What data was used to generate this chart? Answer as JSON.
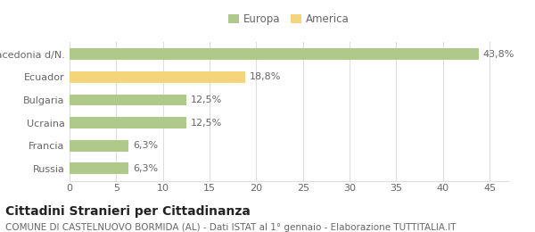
{
  "categories": [
    "Russia",
    "Francia",
    "Ucraina",
    "Bulgaria",
    "Ecuador",
    "Macedonia d/N."
  ],
  "values": [
    6.3,
    6.3,
    12.5,
    12.5,
    18.8,
    43.8
  ],
  "labels": [
    "6,3%",
    "6,3%",
    "12,5%",
    "12,5%",
    "18,8%",
    "43,8%"
  ],
  "colors": [
    "#aec98a",
    "#aec98a",
    "#aec98a",
    "#aec98a",
    "#f5d57a",
    "#aec98a"
  ],
  "bar_height": 0.5,
  "xlim": [
    0,
    47
  ],
  "xticks": [
    0,
    5,
    10,
    15,
    20,
    25,
    30,
    35,
    40,
    45
  ],
  "legend_items": [
    {
      "label": "Europa",
      "color": "#aec98a"
    },
    {
      "label": "America",
      "color": "#f5d57a"
    }
  ],
  "title": "Cittadini Stranieri per Cittadinanza",
  "subtitle": "COMUNE DI CASTELNUOVO BORMIDA (AL) - Dati ISTAT al 1° gennaio - Elaborazione TUTTITALIA.IT",
  "title_fontsize": 10,
  "subtitle_fontsize": 7.5,
  "label_fontsize": 8,
  "tick_fontsize": 8,
  "legend_fontsize": 8.5,
  "bg_color": "#ffffff",
  "grid_color": "#dddddd",
  "text_color": "#666666"
}
